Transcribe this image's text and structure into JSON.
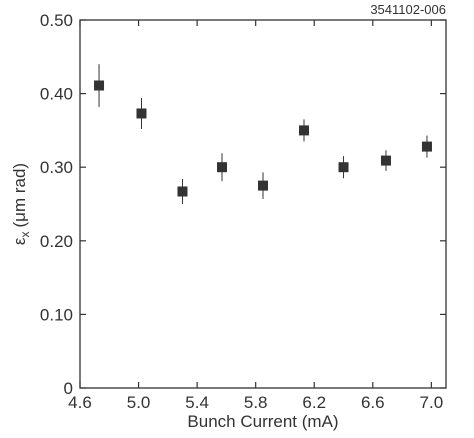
{
  "figure_id": "3541102-006",
  "chart_data": {
    "type": "scatter",
    "xlabel": "Bunch Current (mA)",
    "ylabel_symbol": "ε",
    "ylabel_subscript": "x",
    "ylabel_units": "(μm rad)",
    "xlim": [
      4.6,
      7.1
    ],
    "ylim": [
      0,
      0.5
    ],
    "x_ticks": [
      4.6,
      5.0,
      5.4,
      5.8,
      6.2,
      6.6,
      7.0
    ],
    "x_tick_labels": [
      "4.6",
      "5.0",
      "5.4",
      "5.8",
      "6.2",
      "6.6",
      "7.0"
    ],
    "y_ticks": [
      0,
      0.1,
      0.2,
      0.3,
      0.4,
      0.5
    ],
    "y_tick_labels": [
      "0",
      "0.10",
      "0.20",
      "0.30",
      "0.40",
      "0.50"
    ],
    "grid": false,
    "series": [
      {
        "marker": "square",
        "color": "#333333",
        "points": [
          {
            "x": 4.73,
            "y": 0.411,
            "err": 0.029
          },
          {
            "x": 5.02,
            "y": 0.373,
            "err": 0.021
          },
          {
            "x": 5.3,
            "y": 0.267,
            "err": 0.017
          },
          {
            "x": 5.57,
            "y": 0.3,
            "err": 0.019
          },
          {
            "x": 5.85,
            "y": 0.275,
            "err": 0.018
          },
          {
            "x": 6.13,
            "y": 0.35,
            "err": 0.015
          },
          {
            "x": 6.4,
            "y": 0.3,
            "err": 0.015
          },
          {
            "x": 6.69,
            "y": 0.309,
            "err": 0.014
          },
          {
            "x": 6.97,
            "y": 0.328,
            "err": 0.015
          }
        ]
      }
    ]
  }
}
